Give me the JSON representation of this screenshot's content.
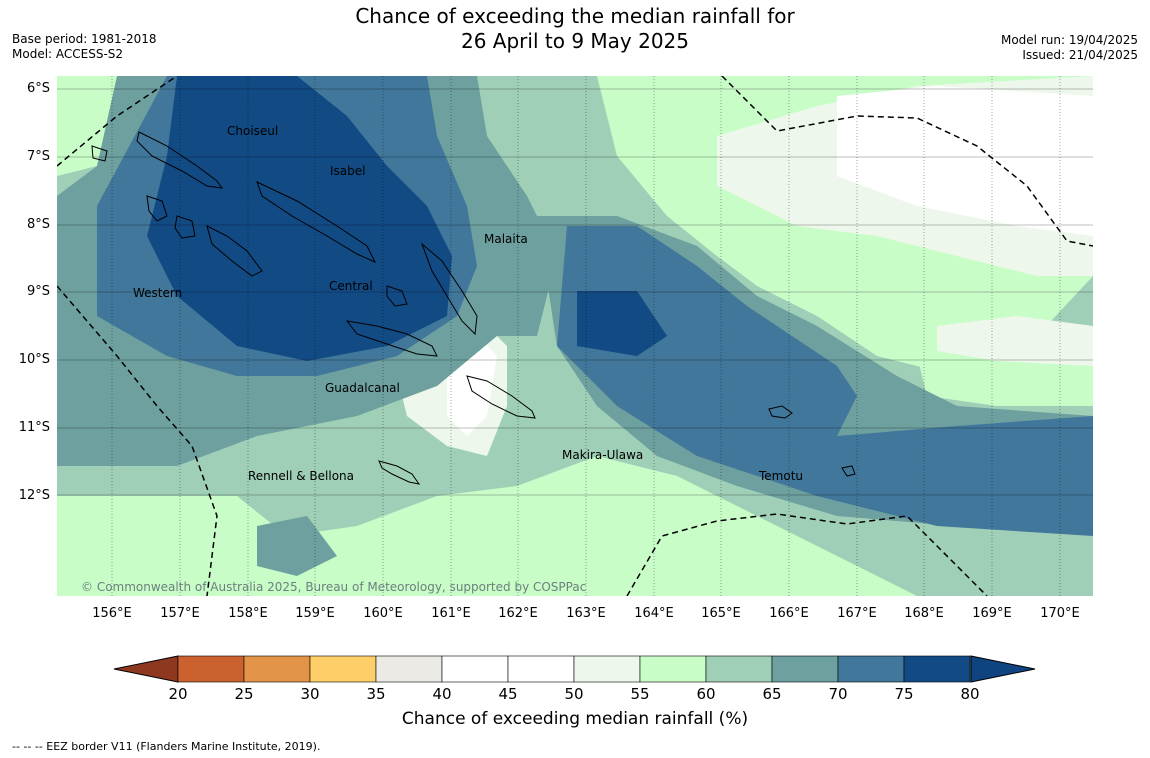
{
  "title_line1": "Chance of exceeding the median rainfall for",
  "title_line2": "26 April to 9 May 2025",
  "meta_left": {
    "base_period": "Base period: 1981-2018",
    "model": "Model: ACCESS-S2"
  },
  "meta_right": {
    "model_run": "Model run: 19/04/2025",
    "issued": "Issued: 21/04/2025"
  },
  "lat_labels": [
    "6°S",
    "7°S",
    "8°S",
    "9°S",
    "10°S",
    "11°S",
    "12°S"
  ],
  "lon_labels": [
    "156°E",
    "157°E",
    "158°E",
    "159°E",
    "160°E",
    "161°E",
    "162°E",
    "163°E",
    "164°E",
    "165°E",
    "166°E",
    "167°E",
    "168°E",
    "169°E",
    "170°E"
  ],
  "regions": [
    "Choiseul",
    "Isabel",
    "Malaita",
    "Western",
    "Central",
    "Guadalcanal",
    "Makira-Ulawa",
    "Rennell & Bellona",
    "Temotu"
  ],
  "copyright": "© Commonwealth of Australia 2025, Bureau of Meteorology, supported by COSPPac",
  "colorbar": {
    "ticks": [
      "20",
      "25",
      "30",
      "35",
      "40",
      "45",
      "50",
      "55",
      "60",
      "65",
      "70",
      "75",
      "80"
    ],
    "colors": [
      "#ad4326",
      "#ca612f",
      "#e39449",
      "#fecf69",
      "#eceae4",
      "#ffffff",
      "#ffffff",
      "#eef7ec",
      "#c8fdc8",
      "#9fcfb7",
      "#6da09f",
      "#41779a",
      "#124a84"
    ],
    "under_color": "#8f3820",
    "over_color": "#0f4480",
    "title": "Chance of exceeding median rainfall (%)"
  },
  "footer_note": "--  --  -- EEZ border V11 (Flanders Marine Institute, 2019)."
}
